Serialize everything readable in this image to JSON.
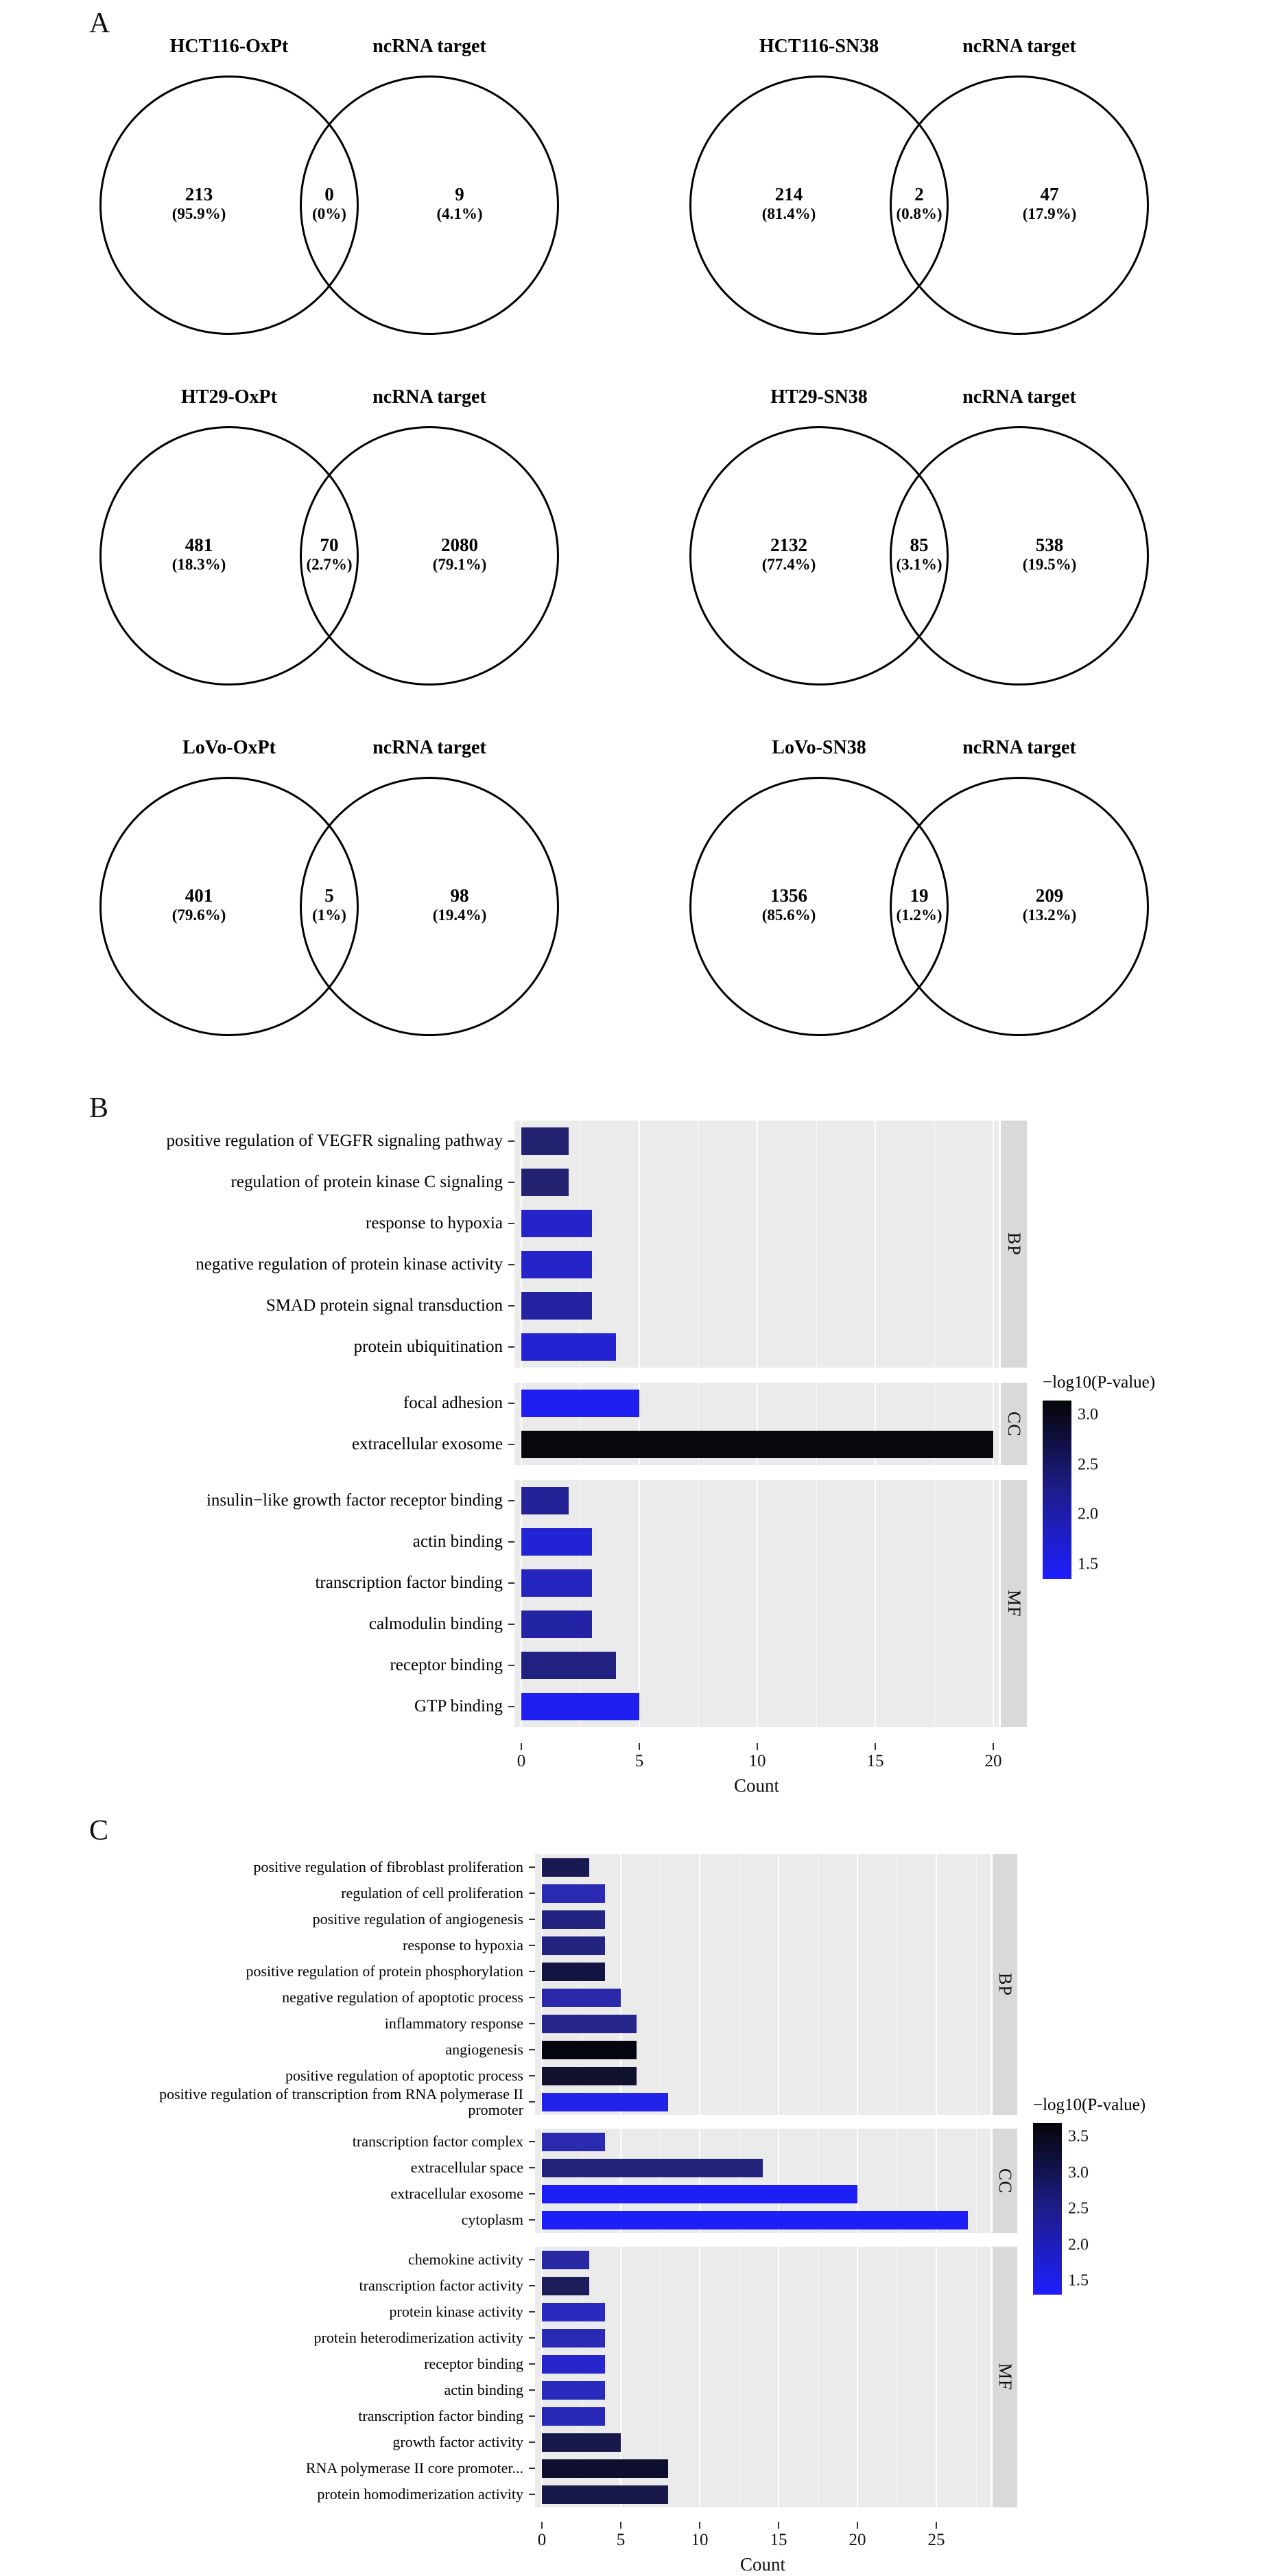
{
  "panel_labels": {
    "a": "A",
    "b": "B",
    "c": "C"
  },
  "venn_diagrams": [
    {
      "condition": "HCT116-OxPt",
      "target": "ncRNA target",
      "left_count": "213",
      "left_pct": "(95.9%)",
      "overlap_count": "0",
      "overlap_pct": "(0%)",
      "right_count": "9",
      "right_pct": "(4.1%)"
    },
    {
      "condition": "HCT116-SN38",
      "target": "ncRNA target",
      "left_count": "214",
      "left_pct": "(81.4%)",
      "overlap_count": "2",
      "overlap_pct": "(0.8%)",
      "right_count": "47",
      "right_pct": "(17.9%)"
    },
    {
      "condition": "HT29-OxPt",
      "target": "ncRNA target",
      "left_count": "481",
      "left_pct": "(18.3%)",
      "overlap_count": "70",
      "overlap_pct": "(2.7%)",
      "right_count": "2080",
      "right_pct": "(79.1%)"
    },
    {
      "condition": "HT29-SN38",
      "target": "ncRNA target",
      "left_count": "2132",
      "left_pct": "(77.4%)",
      "overlap_count": "85",
      "overlap_pct": "(3.1%)",
      "right_count": "538",
      "right_pct": "(19.5%)"
    },
    {
      "condition": "LoVo-OxPt",
      "target": "ncRNA target",
      "left_count": "401",
      "left_pct": "(79.6%)",
      "overlap_count": "5",
      "overlap_pct": "(1%)",
      "right_count": "98",
      "right_pct": "(19.4%)"
    },
    {
      "condition": "LoVo-SN38",
      "target": "ncRNA target",
      "left_count": "1356",
      "left_pct": "(85.6%)",
      "overlap_count": "19",
      "overlap_pct": "(1.2%)",
      "right_count": "209",
      "right_pct": "(13.2%)"
    }
  ],
  "chart_data": [
    {
      "type": "bar",
      "orientation": "horizontal",
      "panel": "B",
      "xlabel": "Count",
      "xlim": [
        0,
        20
      ],
      "xticks": [
        0,
        5,
        10,
        15,
        20
      ],
      "grid": true,
      "legend": {
        "title": "−log10(P-value)",
        "position": "right",
        "tick_labels": [
          "3.0",
          "2.5",
          "2.0",
          "1.5"
        ],
        "value_high": 3.0,
        "value_low": 1.5,
        "color_high": "#050507",
        "color_low": "#1e1eff"
      },
      "facets": [
        {
          "name": "BP",
          "categories": [
            "positive regulation of VEGFR signaling pathway",
            "regulation of protein kinase C signaling",
            "response to hypoxia",
            "negative regulation of protein kinase activity",
            "SMAD protein signal transduction",
            "protein ubiquitination"
          ],
          "values": [
            2,
            2,
            3,
            3,
            3,
            4
          ],
          "neglog10p": [
            2.6,
            2.6,
            1.9,
            1.9,
            2.2,
            1.8
          ],
          "colors": [
            "#222270",
            "#222270",
            "#2424c8",
            "#2424c8",
            "#2323a2",
            "#2323d4"
          ]
        },
        {
          "name": "CC",
          "categories": [
            "focal adhesion",
            "extracellular exosome"
          ],
          "values": [
            5,
            20
          ],
          "neglog10p": [
            1.6,
            3.0
          ],
          "colors": [
            "#1e1ef0",
            "#07070d"
          ]
        },
        {
          "name": "MF",
          "categories": [
            "insulin−like growth factor receptor binding",
            "actin binding",
            "transcription factor binding",
            "calmodulin binding",
            "receptor binding",
            "GTP binding"
          ],
          "values": [
            2,
            3,
            3,
            3,
            4,
            5
          ],
          "neglog10p": [
            2.3,
            1.8,
            2.0,
            2.2,
            2.5,
            1.6
          ],
          "colors": [
            "#232397",
            "#2323d6",
            "#2424be",
            "#2323a6",
            "#212182",
            "#1e1ef0"
          ]
        }
      ]
    },
    {
      "type": "bar",
      "orientation": "horizontal",
      "panel": "C",
      "xlabel": "Count",
      "xlim": [
        0,
        28
      ],
      "xticks": [
        0,
        5,
        10,
        15,
        20,
        25
      ],
      "grid": true,
      "legend": {
        "title": "−log10(P-value)",
        "position": "right",
        "tick_labels": [
          "3.5",
          "3.0",
          "2.5",
          "2.0",
          "1.5"
        ],
        "value_high": 3.5,
        "value_low": 1.5,
        "color_high": "#050507",
        "color_low": "#1e1eff"
      },
      "facets": [
        {
          "name": "BP",
          "categories": [
            "positive regulation of fibroblast proliferation",
            "regulation of cell proliferation",
            "positive regulation of angiogenesis",
            "response to hypoxia",
            "positive regulation of protein phosphorylation",
            "negative regulation of apoptotic process",
            "inflammatory response",
            "angiogenesis",
            "positive regulation of apoptotic process",
            "positive regulation of transcription from RNA polymerase II promoter"
          ],
          "values": [
            3,
            4,
            4,
            4,
            4,
            5,
            6,
            6,
            6,
            8
          ],
          "neglog10p": [
            2.9,
            2.0,
            2.5,
            2.5,
            3.1,
            2.1,
            2.4,
            3.5,
            3.2,
            1.6
          ],
          "colors": [
            "#1a1a52",
            "#2a2ab2",
            "#232380",
            "#232380",
            "#141442",
            "#2929aa",
            "#25258c",
            "#060610",
            "#10102f",
            "#2222e8"
          ]
        },
        {
          "name": "CC",
          "categories": [
            "transcription factor complex",
            "extracellular space",
            "extracellular exosome",
            "cytoplasm"
          ],
          "values": [
            4,
            14,
            20,
            27
          ],
          "neglog10p": [
            2.0,
            2.5,
            1.5,
            1.5
          ],
          "colors": [
            "#2b2bb0",
            "#22227a",
            "#1e1ef6",
            "#1e1ef6"
          ]
        },
        {
          "name": "MF",
          "categories": [
            "chemokine activity",
            "transcription factor activity",
            "protein kinase activity",
            "protein heterodimerization activity",
            "receptor binding",
            "actin binding",
            "transcription factor binding",
            "growth factor activity",
            "RNA polymerase II core promoter...",
            "protein homodimerization activity"
          ],
          "values": [
            3,
            3,
            4,
            4,
            4,
            4,
            4,
            5,
            8,
            8
          ],
          "neglog10p": [
            2.1,
            2.8,
            1.9,
            2.0,
            1.8,
            1.9,
            2.0,
            3.0,
            3.3,
            3.0
          ],
          "colors": [
            "#2929a4",
            "#1d1d5c",
            "#2a2abe",
            "#2a2ab4",
            "#2626cc",
            "#2a2abc",
            "#2828b6",
            "#18184a",
            "#0e0e2e",
            "#18184a"
          ]
        }
      ]
    }
  ]
}
